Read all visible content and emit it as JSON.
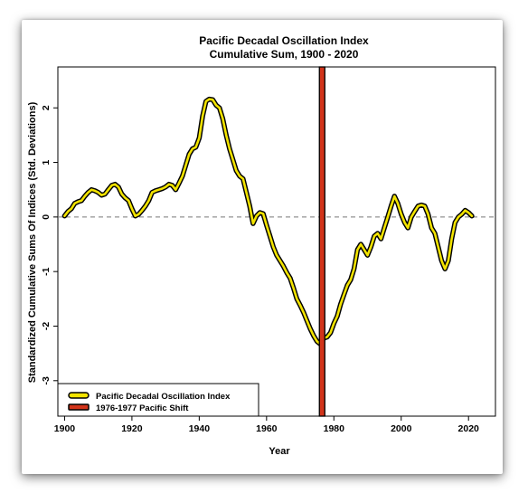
{
  "chart_data": {
    "type": "line",
    "title": "Pacific Decadal Oscillation Index",
    "subtitle": "Cumulative Sum, 1900 - 2020",
    "xlabel": "Year",
    "ylabel": "Standardized Cumulative Sums Of Indices (Std. Deviations)",
    "xlim": [
      1898,
      2028
    ],
    "ylim": [
      -3.65,
      2.75
    ],
    "x_ticks": [
      1900,
      1920,
      1940,
      1960,
      1980,
      2000,
      2020
    ],
    "y_ticks": [
      -3,
      -2,
      -1,
      0,
      1,
      2
    ],
    "reference_line": {
      "y": 0,
      "style": "dashed",
      "color": "#777777"
    },
    "shift_line": {
      "x": 1976.5,
      "label": "1976-1977 Pacific Shift",
      "color": "#d2341a"
    },
    "series": [
      {
        "name": "Pacific Decadal Oscillation Index",
        "color": "#f2e300",
        "outline": "#000000",
        "x": [
          1900,
          1901,
          1902,
          1903,
          1904,
          1905,
          1906,
          1907,
          1908,
          1909,
          1910,
          1911,
          1912,
          1913,
          1914,
          1915,
          1916,
          1917,
          1918,
          1919,
          1920,
          1921,
          1922,
          1923,
          1924,
          1925,
          1926,
          1927,
          1928,
          1929,
          1930,
          1931,
          1932,
          1933,
          1934,
          1935,
          1936,
          1937,
          1938,
          1939,
          1940,
          1941,
          1942,
          1943,
          1944,
          1945,
          1946,
          1947,
          1948,
          1949,
          1950,
          1951,
          1952,
          1953,
          1954,
          1955,
          1956,
          1957,
          1958,
          1959,
          1960,
          1961,
          1962,
          1963,
          1964,
          1965,
          1966,
          1967,
          1968,
          1969,
          1970,
          1971,
          1972,
          1973,
          1974,
          1975,
          1976,
          1977,
          1978,
          1979,
          1980,
          1981,
          1982,
          1983,
          1984,
          1985,
          1986,
          1987,
          1988,
          1989,
          1990,
          1991,
          1992,
          1993,
          1994,
          1995,
          1996,
          1997,
          1998,
          1999,
          2000,
          2001,
          2002,
          2003,
          2004,
          2005,
          2006,
          2007,
          2008,
          2009,
          2010,
          2011,
          2012,
          2013,
          2014,
          2015,
          2016,
          2017,
          2018,
          2019,
          2020,
          2021
        ],
        "y": [
          0.02,
          0.1,
          0.15,
          0.25,
          0.28,
          0.3,
          0.38,
          0.45,
          0.5,
          0.48,
          0.45,
          0.4,
          0.42,
          0.5,
          0.58,
          0.6,
          0.55,
          0.42,
          0.35,
          0.3,
          0.15,
          0.02,
          0.05,
          0.12,
          0.2,
          0.3,
          0.45,
          0.48,
          0.5,
          0.52,
          0.55,
          0.6,
          0.58,
          0.5,
          0.62,
          0.75,
          0.95,
          1.15,
          1.25,
          1.28,
          1.45,
          1.85,
          2.12,
          2.16,
          2.15,
          2.05,
          2.0,
          1.8,
          1.5,
          1.25,
          1.05,
          0.85,
          0.75,
          0.7,
          0.45,
          0.2,
          -0.12,
          0.02,
          0.08,
          0.06,
          -0.15,
          -0.35,
          -0.55,
          -0.7,
          -0.8,
          -0.9,
          -1.02,
          -1.12,
          -1.3,
          -1.5,
          -1.62,
          -1.75,
          -1.9,
          -2.05,
          -2.18,
          -2.28,
          -2.33,
          -2.22,
          -2.2,
          -2.12,
          -1.95,
          -1.82,
          -1.6,
          -1.42,
          -1.25,
          -1.15,
          -0.95,
          -0.6,
          -0.5,
          -0.6,
          -0.7,
          -0.55,
          -0.35,
          -0.3,
          -0.4,
          -0.2,
          0.0,
          0.2,
          0.38,
          0.25,
          0.05,
          -0.1,
          -0.2,
          0.0,
          0.1,
          0.2,
          0.22,
          0.2,
          0.05,
          -0.2,
          -0.3,
          -0.55,
          -0.8,
          -0.95,
          -0.8,
          -0.4,
          -0.1,
          0.0,
          0.05,
          0.12,
          0.08,
          0.02
        ]
      }
    ],
    "legend": {
      "position": "bottom-left",
      "items": [
        {
          "label": "Pacific Decadal Oscillation Index",
          "color": "#f2e300"
        },
        {
          "label": "1976-1977 Pacific Shift",
          "color": "#d2341a"
        }
      ]
    }
  }
}
